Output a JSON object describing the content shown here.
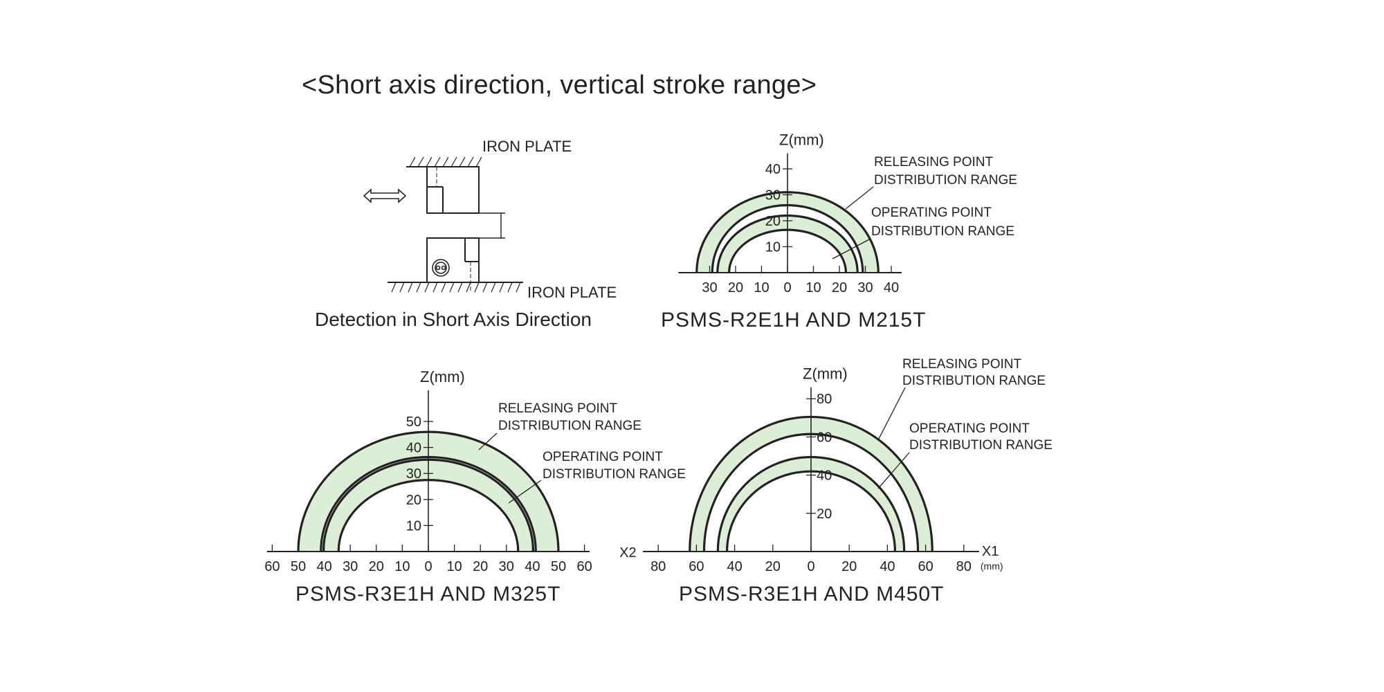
{
  "title": "<Short axis direction, vertical stroke range>",
  "diagram": {
    "top_plate_label": "IRON PLATE",
    "bottom_plate_label": "IRON PLATE",
    "caption": "Detection in Short Axis Direction",
    "icons": [
      "double-arrow-icon",
      "sensor-icon"
    ]
  },
  "colors": {
    "band_fill": "#dcefd6",
    "line": "#222222"
  },
  "chart_data": [
    {
      "type": "area",
      "caption": "PSMS-R2E1H AND M215T",
      "ylabel": "Z(mm)",
      "x_ticks": [
        -30,
        -20,
        -10,
        0,
        10,
        20,
        30,
        40
      ],
      "y_ticks": [
        10,
        20,
        30,
        40
      ],
      "releasing_label": [
        "RELEASING POINT",
        "DISTRIBUTION RANGE"
      ],
      "operating_label": [
        "OPERATING POINT",
        "DISTRIBUTION RANGE"
      ],
      "bands": [
        {
          "label": "releasing",
          "outer": {
            "top": 31,
            "half_width": 35
          },
          "inner": {
            "top": 26,
            "half_width": 29
          }
        },
        {
          "label": "operating",
          "outer": {
            "top": 22,
            "half_width": 27
          },
          "inner": {
            "top": 16.5,
            "half_width": 22.5
          }
        }
      ]
    },
    {
      "type": "area",
      "caption": "PSMS-R3E1H AND M325T",
      "ylabel": "Z(mm)",
      "x_ticks": [
        -60,
        -50,
        -40,
        -30,
        -20,
        -10,
        0,
        10,
        20,
        30,
        40,
        50,
        60
      ],
      "y_ticks": [
        10,
        20,
        30,
        40,
        50
      ],
      "releasing_label": [
        "RELEASING POINT",
        "DISTRIBUTION RANGE"
      ],
      "operating_label": [
        "OPERATING POINT",
        "DISTRIBUTION RANGE"
      ],
      "bands": [
        {
          "label": "releasing",
          "outer": {
            "top": 46,
            "half_width": 50
          },
          "inner": {
            "top": 36.3,
            "half_width": 41.3
          }
        },
        {
          "label": "operating",
          "outer": {
            "top": 35.3,
            "half_width": 40.3
          },
          "inner": {
            "top": 27.5,
            "half_width": 34.5
          }
        }
      ]
    },
    {
      "type": "area",
      "caption": "PSMS-R3E1H AND M450T",
      "ylabel": "Z(mm)",
      "x_left_label": "X2",
      "x_right_label": "X1",
      "x_unit": "(mm)",
      "x_ticks": [
        -80,
        -60,
        -40,
        -20,
        0,
        20,
        40,
        60,
        80
      ],
      "y_ticks": [
        20,
        40,
        60,
        80
      ],
      "releasing_label": [
        "RELEASING POINT",
        "DISTRIBUTION RANGE"
      ],
      "operating_label": [
        "OPERATING POINT",
        "DISTRIBUTION RANGE"
      ],
      "bands": [
        {
          "label": "releasing",
          "outer": {
            "top": 70.5,
            "half_width": 63.5
          },
          "inner": {
            "top": 61.5,
            "half_width": 56
          }
        },
        {
          "label": "operating",
          "outer": {
            "top": 49.5,
            "half_width": 48.8
          },
          "inner": {
            "top": 42,
            "half_width": 44
          }
        }
      ]
    }
  ]
}
